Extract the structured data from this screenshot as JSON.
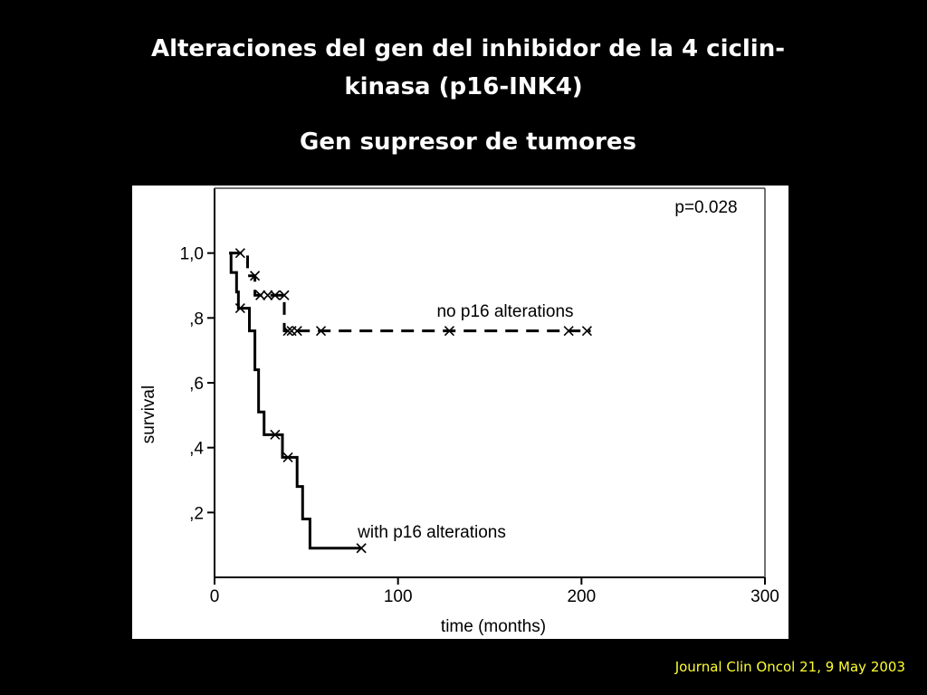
{
  "slide": {
    "title_lines": [
      "Alteraciones del gen del inhibidor de la 4 ciclin-",
      "kinasa (p16-INK4)"
    ],
    "subtitle": "Gen supresor de tumores",
    "source": "Journal Clin Oncol 21, 9 May 2003"
  },
  "chart_data": {
    "type": "step",
    "xlabel": "time (months)",
    "ylabel": "survival",
    "annotation": "p=0.028",
    "xlim": [
      0,
      300
    ],
    "xticks": [
      0,
      100,
      200,
      300
    ],
    "ylim": [
      0,
      1.2
    ],
    "yticks": [
      {
        "value": 0.2,
        "label": ",2"
      },
      {
        "value": 0.4,
        "label": ",4"
      },
      {
        "value": 0.6,
        "label": ",6"
      },
      {
        "value": 0.8,
        "label": ",8"
      },
      {
        "value": 1.0,
        "label": "1,0"
      }
    ],
    "series": [
      {
        "name": "no p16 alterations",
        "color": "#000000",
        "dashed": true,
        "x": [
          8,
          18,
          22,
          38,
          205
        ],
        "values": [
          1.0,
          0.93,
          0.87,
          0.76,
          0.76
        ],
        "censored": {
          "x": [
            14,
            22,
            25,
            29,
            33,
            38,
            40,
            42,
            45,
            58,
            128,
            193,
            203
          ],
          "values": [
            1.0,
            0.93,
            0.87,
            0.87,
            0.87,
            0.87,
            0.76,
            0.76,
            0.76,
            0.76,
            0.76,
            0.76,
            0.76
          ]
        }
      },
      {
        "name": "with p16 alterations",
        "color": "#000000",
        "dashed": false,
        "x": [
          8,
          9,
          12,
          13,
          19,
          22,
          24,
          27,
          37,
          45,
          48,
          52,
          80
        ],
        "values": [
          1.0,
          0.94,
          0.88,
          0.83,
          0.76,
          0.64,
          0.51,
          0.44,
          0.37,
          0.28,
          0.18,
          0.09,
          0.09
        ],
        "censored": {
          "x": [
            14,
            33,
            40,
            80
          ],
          "values": [
            0.83,
            0.44,
            0.37,
            0.09
          ]
        }
      }
    ]
  }
}
